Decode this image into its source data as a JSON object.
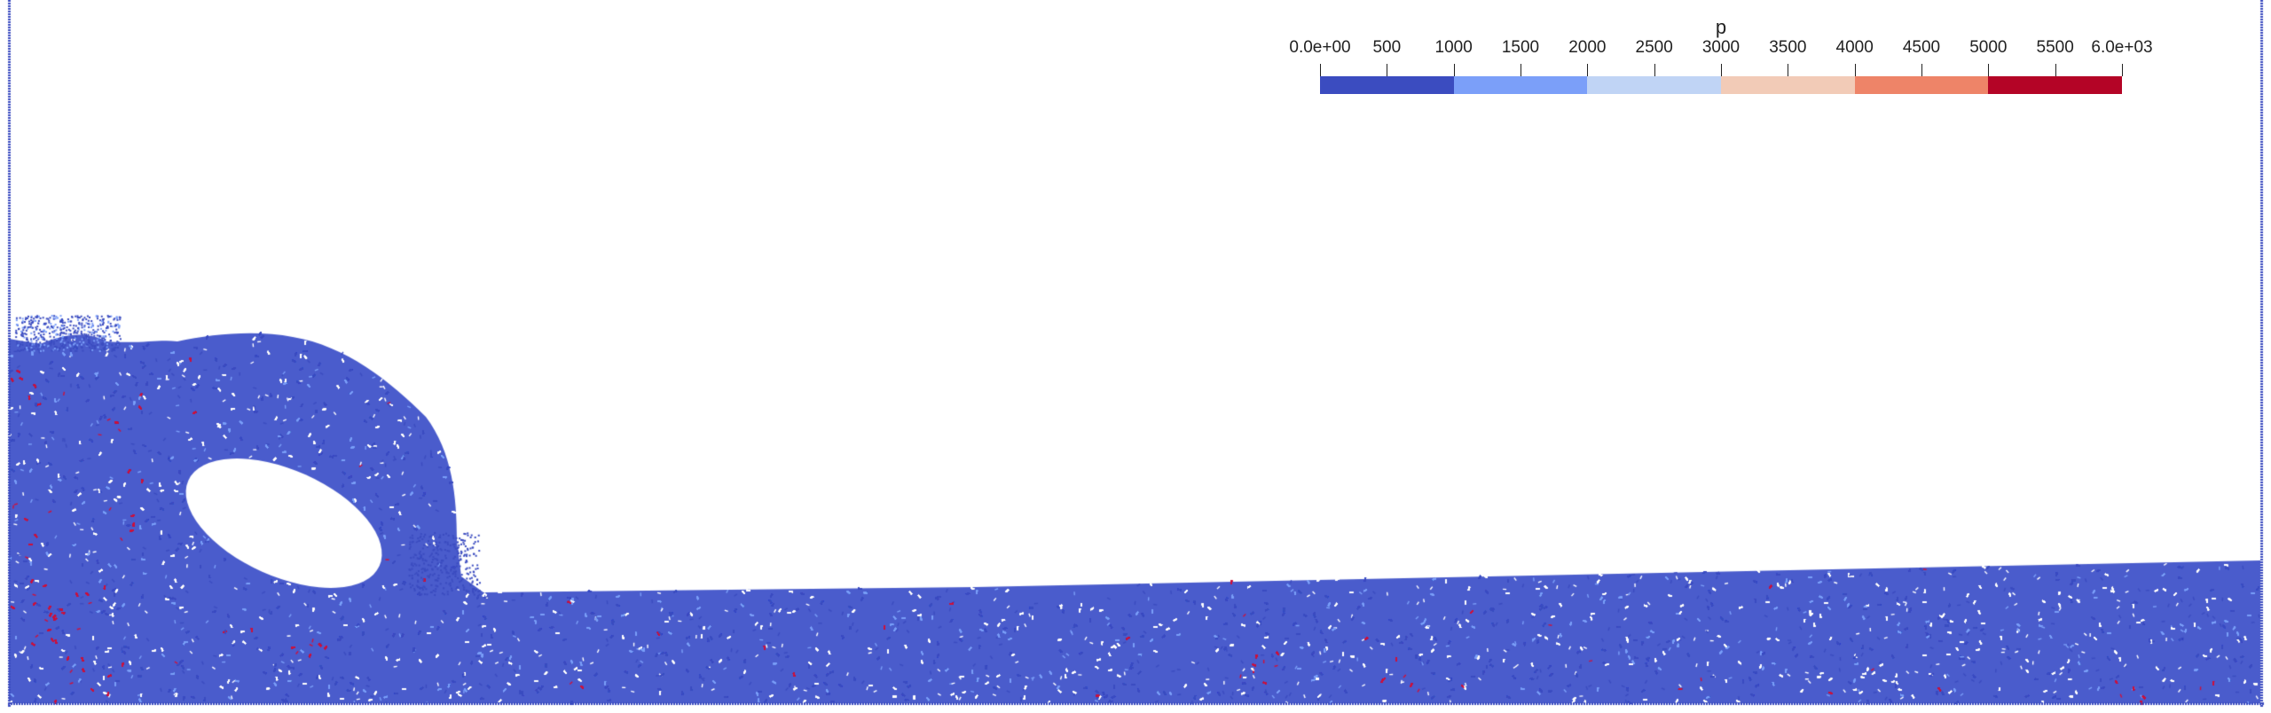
{
  "colorbar": {
    "title": "p",
    "tick_labels": [
      "0.0e+00",
      "500",
      "1000",
      "1500",
      "2000",
      "2500",
      "3000",
      "3500",
      "4000",
      "4500",
      "5000",
      "5500",
      "6.0e+03"
    ],
    "range": [
      0,
      6000
    ],
    "bins": [
      {
        "from": 0,
        "to": 1000,
        "color": "#3b4cc0"
      },
      {
        "from": 1000,
        "to": 2000,
        "color": "#7b9ff9"
      },
      {
        "from": 2000,
        "to": 3000,
        "color": "#c0d4f5"
      },
      {
        "from": 3000,
        "to": 4000,
        "color": "#f2cbb7"
      },
      {
        "from": 4000,
        "to": 5000,
        "color": "#ee8468"
      },
      {
        "from": 5000,
        "to": 6000,
        "color": "#b40426"
      }
    ]
  },
  "particles": {
    "dominant_color": "#3b4cc0",
    "light_color": "#7b9ff9",
    "highlight_color": "#d0103a",
    "background_color": "#ffffff"
  }
}
